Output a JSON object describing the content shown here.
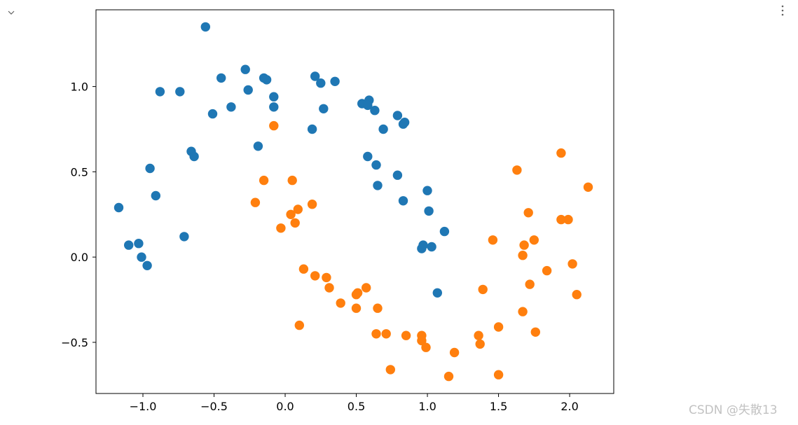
{
  "notebook": {
    "collapse_icon": "chevron-down-icon",
    "menu_icon": "vertical-ellipsis-icon"
  },
  "watermark": "CSDN @失散13",
  "chart_data": {
    "type": "scatter",
    "title": "",
    "xlabel": "",
    "ylabel": "",
    "xlim": [
      -1.33,
      2.31
    ],
    "ylim": [
      -0.8,
      1.45
    ],
    "xticks": [
      -1.0,
      -0.5,
      0.0,
      0.5,
      1.0,
      1.5,
      2.0
    ],
    "xtick_labels": [
      "−1.0",
      "−0.5",
      "0.0",
      "0.5",
      "1.0",
      "1.5",
      "2.0"
    ],
    "yticks": [
      -0.5,
      0.0,
      0.5,
      1.0
    ],
    "ytick_labels": [
      "−0.5",
      "0.0",
      "0.5",
      "1.0"
    ],
    "grid": false,
    "legend": "none",
    "series": [
      {
        "color": "#1f77b4",
        "points": [
          [
            -0.56,
            1.35
          ],
          [
            -0.28,
            1.1
          ],
          [
            -0.45,
            1.05
          ],
          [
            -0.15,
            1.05
          ],
          [
            -0.13,
            1.04
          ],
          [
            -0.26,
            0.98
          ],
          [
            -0.88,
            0.97
          ],
          [
            -0.74,
            0.97
          ],
          [
            -0.08,
            0.94
          ],
          [
            -0.38,
            0.88
          ],
          [
            -0.08,
            0.88
          ],
          [
            -0.51,
            0.84
          ],
          [
            0.21,
            1.06
          ],
          [
            0.25,
            1.02
          ],
          [
            0.35,
            1.03
          ],
          [
            0.27,
            0.87
          ],
          [
            0.19,
            0.75
          ],
          [
            0.59,
            0.92
          ],
          [
            0.54,
            0.9
          ],
          [
            0.58,
            0.89
          ],
          [
            0.63,
            0.86
          ],
          [
            0.79,
            0.83
          ],
          [
            0.83,
            0.78
          ],
          [
            0.84,
            0.79
          ],
          [
            0.69,
            0.75
          ],
          [
            -0.19,
            0.65
          ],
          [
            -0.66,
            0.62
          ],
          [
            -0.64,
            0.59
          ],
          [
            -0.95,
            0.52
          ],
          [
            -0.91,
            0.36
          ],
          [
            -1.17,
            0.29
          ],
          [
            -0.71,
            0.12
          ],
          [
            -1.1,
            0.07
          ],
          [
            -1.03,
            0.08
          ],
          [
            -1.01,
            0.0
          ],
          [
            -0.97,
            -0.05
          ],
          [
            0.58,
            0.59
          ],
          [
            0.64,
            0.54
          ],
          [
            0.65,
            0.42
          ],
          [
            0.79,
            0.48
          ],
          [
            0.83,
            0.33
          ],
          [
            1.0,
            0.39
          ],
          [
            1.01,
            0.27
          ],
          [
            1.12,
            0.15
          ],
          [
            0.97,
            0.07
          ],
          [
            0.96,
            0.05
          ],
          [
            1.03,
            0.06
          ],
          [
            1.07,
            -0.21
          ]
        ]
      },
      {
        "color": "#ff7f0e",
        "points": [
          [
            -0.08,
            0.77
          ],
          [
            -0.15,
            0.45
          ],
          [
            0.05,
            0.45
          ],
          [
            -0.21,
            0.32
          ],
          [
            0.19,
            0.31
          ],
          [
            0.04,
            0.25
          ],
          [
            0.09,
            0.28
          ],
          [
            0.07,
            0.2
          ],
          [
            -0.03,
            0.17
          ],
          [
            0.13,
            -0.07
          ],
          [
            0.21,
            -0.11
          ],
          [
            0.29,
            -0.12
          ],
          [
            0.31,
            -0.18
          ],
          [
            0.39,
            -0.27
          ],
          [
            0.5,
            -0.22
          ],
          [
            0.51,
            -0.21
          ],
          [
            0.57,
            -0.18
          ],
          [
            0.5,
            -0.3
          ],
          [
            0.65,
            -0.3
          ],
          [
            0.1,
            -0.4
          ],
          [
            0.64,
            -0.45
          ],
          [
            0.71,
            -0.45
          ],
          [
            0.85,
            -0.46
          ],
          [
            0.96,
            -0.46
          ],
          [
            0.96,
            -0.49
          ],
          [
            0.99,
            -0.53
          ],
          [
            1.19,
            -0.56
          ],
          [
            0.74,
            -0.66
          ],
          [
            1.15,
            -0.7
          ],
          [
            1.5,
            -0.69
          ],
          [
            1.36,
            -0.46
          ],
          [
            1.37,
            -0.51
          ],
          [
            1.5,
            -0.41
          ],
          [
            1.39,
            -0.19
          ],
          [
            1.46,
            0.1
          ],
          [
            1.63,
            0.51
          ],
          [
            1.71,
            0.26
          ],
          [
            1.68,
            0.07
          ],
          [
            1.67,
            0.01
          ],
          [
            1.75,
            0.1
          ],
          [
            1.72,
            -0.16
          ],
          [
            1.84,
            -0.08
          ],
          [
            1.67,
            -0.32
          ],
          [
            1.76,
            -0.44
          ],
          [
            1.94,
            0.61
          ],
          [
            1.94,
            0.22
          ],
          [
            1.99,
            0.22
          ],
          [
            2.13,
            0.41
          ],
          [
            2.02,
            -0.04
          ],
          [
            2.05,
            -0.22
          ]
        ]
      }
    ]
  }
}
